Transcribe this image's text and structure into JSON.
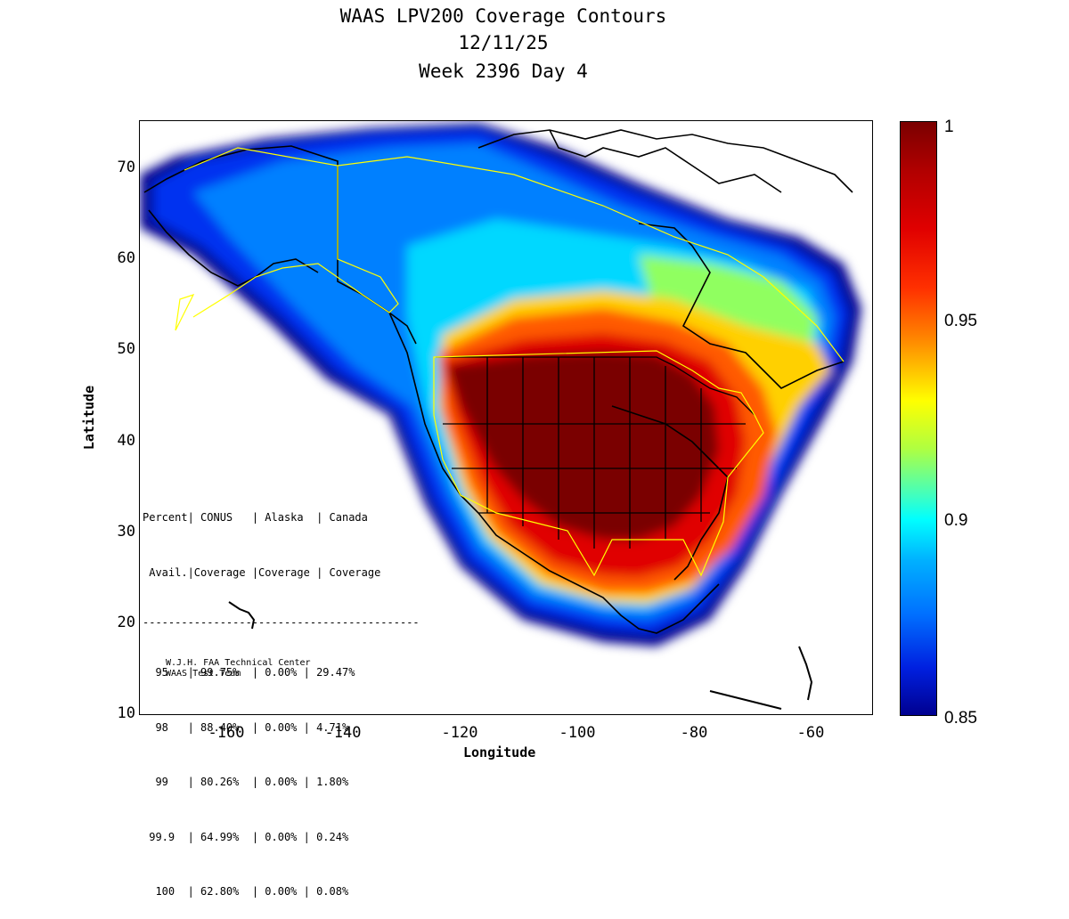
{
  "header": {
    "title": "WAAS LPV200 Coverage Contours",
    "date": "12/11/25",
    "week_day": "Week 2396 Day 4"
  },
  "axes": {
    "xlabel": "Longitude",
    "ylabel": "Latitude",
    "x_ticks": [
      "-160",
      "-140",
      "-120",
      "-100",
      "-80",
      "-60"
    ],
    "y_ticks": [
      "70",
      "60",
      "50",
      "40",
      "30",
      "20",
      "10"
    ],
    "xlim": [
      -175,
      -50
    ],
    "ylim": [
      10,
      75
    ]
  },
  "colorbar": {
    "ticks": [
      "1",
      "0.95",
      "0.9",
      "0.85"
    ],
    "range": [
      0.85,
      1.0
    ]
  },
  "stats_table": {
    "header1": "Percent| CONUS   | Alaska  | Canada",
    "header2": " Avail.|Coverage |Coverage | Coverage",
    "separator": "-------------------------------------------",
    "rows": [
      "  95   | 99.75%  | 0.00% | 29.47%",
      "  98   | 88.40%  | 0.00% | 4.71%",
      "  99   | 80.26%  | 0.00% | 1.80%",
      " 99.9  | 64.99%  | 0.00% | 0.24%",
      "  100  | 62.80%  | 0.00% | 0.08%"
    ]
  },
  "credits": {
    "line1": "W.J.H. FAA Technical Center",
    "line2": "WAAS Test Team"
  },
  "colors": {
    "coverage_peak": "#7a0000",
    "coverage_low": "#000090",
    "boundary": "#ffff00",
    "coastline": "#000000"
  }
}
